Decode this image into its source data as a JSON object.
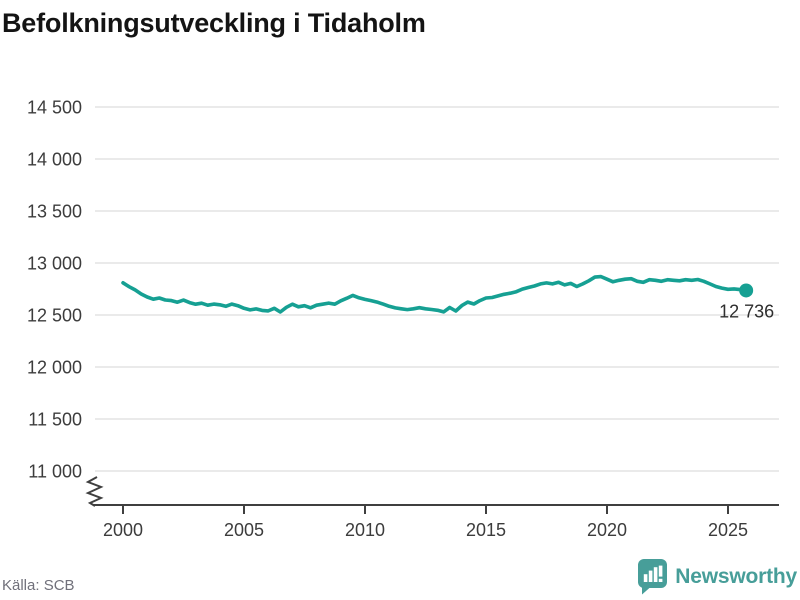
{
  "title": "Befolkningsutveckling i Tidaholm",
  "source": "Källa: SCB",
  "brand": {
    "name": "Newsworthy",
    "color": "#479e99"
  },
  "chart_data": {
    "type": "line",
    "title": "Befolkningsutveckling i Tidaholm",
    "xlabel": "",
    "ylabel": "",
    "x_start": 2000,
    "x_step": 0.25,
    "values": [
      12810,
      12772,
      12741,
      12702,
      12673,
      12652,
      12663,
      12644,
      12638,
      12623,
      12643,
      12619,
      12604,
      12613,
      12594,
      12605,
      12598,
      12584,
      12605,
      12589,
      12564,
      12549,
      12559,
      12544,
      12539,
      12564,
      12529,
      12574,
      12604,
      12579,
      12589,
      12569,
      12594,
      12604,
      12614,
      12604,
      12637,
      12662,
      12688,
      12665,
      12650,
      12638,
      12624,
      12605,
      12584,
      12568,
      12560,
      12552,
      12560,
      12570,
      12560,
      12553,
      12545,
      12530,
      12572,
      12538,
      12590,
      12624,
      12606,
      12638,
      12663,
      12668,
      12684,
      12699,
      12710,
      12724,
      12749,
      12764,
      12779,
      12799,
      12809,
      12799,
      12814,
      12789,
      12804,
      12774,
      12799,
      12829,
      12864,
      12869,
      12844,
      12819,
      12834,
      12844,
      12849,
      12824,
      12814,
      12839,
      12834,
      12824,
      12839,
      12834,
      12829,
      12839,
      12834,
      12841,
      12824,
      12799,
      12774,
      12759,
      12747,
      12751,
      12744,
      12736
    ],
    "end_value": 12736,
    "end_label": "12 736",
    "y_ticks": [
      {
        "value": 14500,
        "label": "14 500"
      },
      {
        "value": 14000,
        "label": "14 000"
      },
      {
        "value": 13500,
        "label": "13 500"
      },
      {
        "value": 13000,
        "label": "13 000"
      },
      {
        "value": 12500,
        "label": "12 500"
      },
      {
        "value": 12000,
        "label": "12 000"
      },
      {
        "value": 11500,
        "label": "11 500"
      },
      {
        "value": 11000,
        "label": "11 000"
      }
    ],
    "x_ticks": [
      {
        "value": 2000,
        "label": "2000"
      },
      {
        "value": 2005,
        "label": "2005"
      },
      {
        "value": 2010,
        "label": "2010"
      },
      {
        "value": 2015,
        "label": "2015"
      },
      {
        "value": 2020,
        "label": "2020"
      },
      {
        "value": 2025,
        "label": "2025"
      }
    ],
    "ylim": [
      11000,
      14500
    ],
    "xlim": [
      2000,
      2025.75
    ],
    "grid": "horizontal",
    "legend_position": "none",
    "axis_break": true,
    "line_color": "#16a093",
    "grid_color": "#e4e4e4",
    "axis_color": "#3f3f3f",
    "label_color": "#3c3c3c",
    "end_label_color": "#2e2e2e"
  }
}
